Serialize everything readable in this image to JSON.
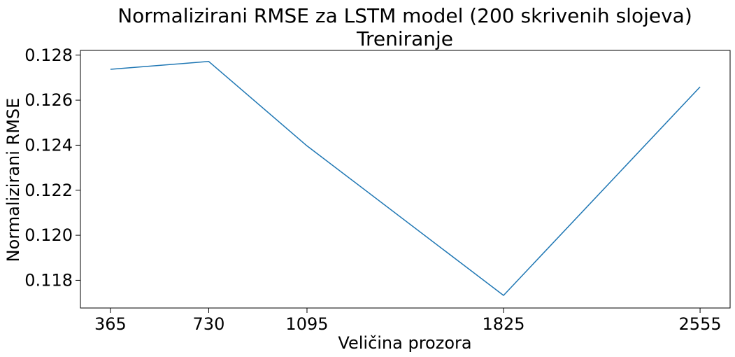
{
  "chart_data": {
    "type": "line",
    "title": "Normalizirani RMSE za LSTM model (200 skrivenih slojeva)",
    "subtitle": "Treniranje",
    "xlabel": "Veličina prozora",
    "ylabel": "Normalizirani RMSE",
    "x": [
      365,
      730,
      1095,
      1825,
      2555
    ],
    "x_ticks": [
      365,
      730,
      1095,
      1825,
      2555
    ],
    "x_tick_labels": [
      "365",
      "730",
      "1095",
      "1825",
      "2555"
    ],
    "xlim": [
      253.5,
      2666.5
    ],
    "y_ticks": [
      0.118,
      0.12,
      0.122,
      0.124,
      0.126,
      0.128
    ],
    "y_tick_labels": [
      "0.118",
      "0.120",
      "0.122",
      "0.124",
      "0.126",
      "0.128"
    ],
    "ylim": [
      0.11677,
      0.12821
    ],
    "series": [
      {
        "values": [
          0.12737,
          0.12772,
          0.12397,
          0.11733,
          0.12659
        ],
        "color": "#1f77b4"
      }
    ],
    "grid": false,
    "legend": "none"
  }
}
